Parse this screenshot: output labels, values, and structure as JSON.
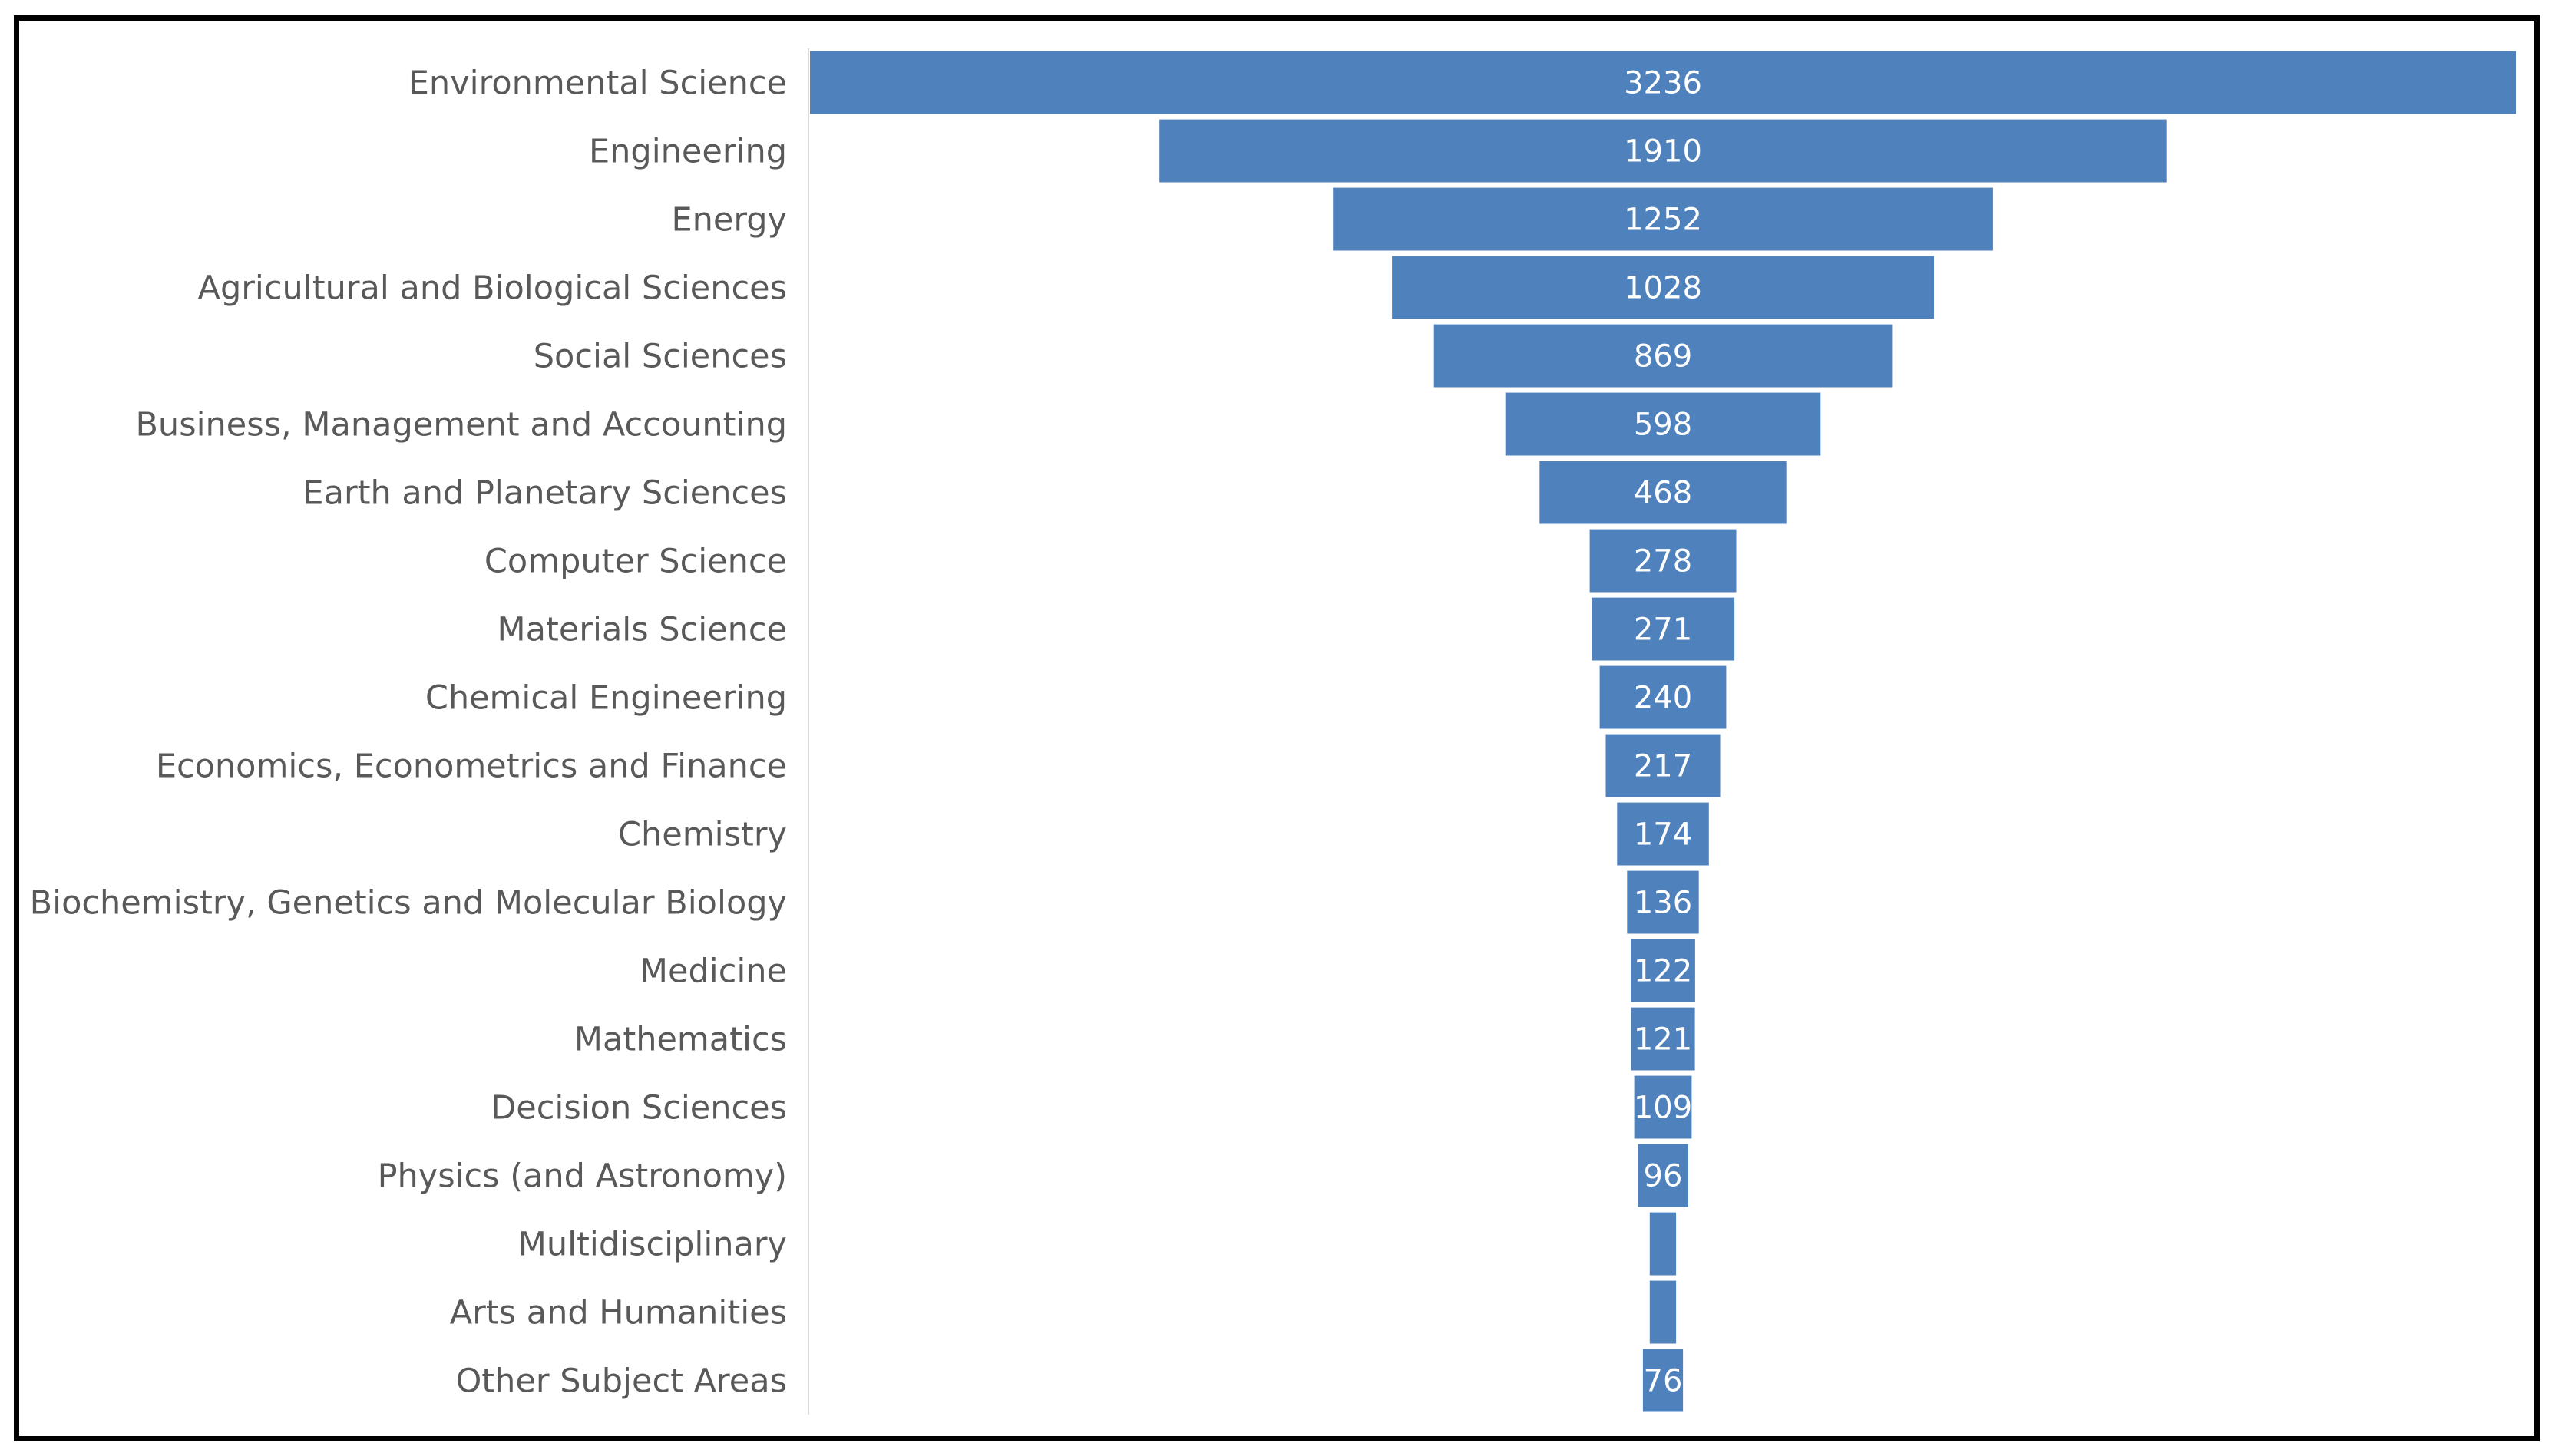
{
  "chart_data": {
    "type": "funnel",
    "title": "",
    "xlabel": "",
    "ylabel": "",
    "bar_color": "#4f81bd",
    "label_color": "#595959",
    "value_label_color": "#ffffff",
    "categories": [
      "Environmental Science",
      "Engineering",
      "Energy",
      "Agricultural and Biological Sciences",
      "Social Sciences",
      "Business, Management and Accounting",
      "Earth and Planetary Sciences",
      "Computer Science",
      "Materials Science",
      "Chemical Engineering",
      "Economics, Econometrics and Finance",
      "Chemistry",
      "Biochemistry, Genetics and Molecular Biology",
      "Medicine",
      "Mathematics",
      "Decision Sciences",
      "Physics (and Astronomy)",
      "Multidisciplinary",
      "Arts and Humanities",
      "Other Subject Areas"
    ],
    "values": [
      3236,
      1910,
      1252,
      1028,
      869,
      598,
      468,
      278,
      271,
      240,
      217,
      174,
      136,
      122,
      121,
      109,
      96,
      50,
      50,
      76
    ],
    "value_labels": [
      "3236",
      "1910",
      "1252",
      "1028",
      "869",
      "598",
      "468",
      "278",
      "271",
      "240",
      "217",
      "174",
      "136",
      "122",
      "121",
      "109",
      "96",
      "",
      "",
      "76"
    ]
  }
}
